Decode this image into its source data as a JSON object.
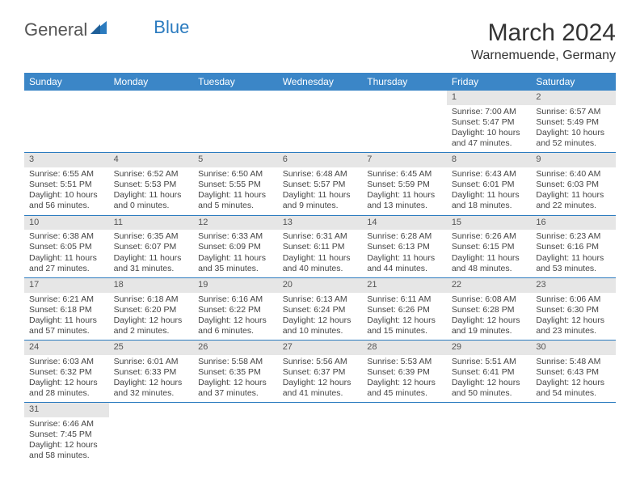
{
  "logo": {
    "word1": "General",
    "word2": "Blue"
  },
  "title": "March 2024",
  "location": "Warnemuende, Germany",
  "colors": {
    "header_bg": "#3b86c7",
    "header_text": "#ffffff",
    "daynum_bg": "#e6e6e6",
    "row_divider": "#2b7bbf",
    "logo_gray": "#555555",
    "logo_blue": "#2b7bbf"
  },
  "day_headers": [
    "Sunday",
    "Monday",
    "Tuesday",
    "Wednesday",
    "Thursday",
    "Friday",
    "Saturday"
  ],
  "weeks": [
    [
      null,
      null,
      null,
      null,
      null,
      {
        "n": "1",
        "sr": "7:00 AM",
        "ss": "5:47 PM",
        "dl": "10 hours and 47 minutes."
      },
      {
        "n": "2",
        "sr": "6:57 AM",
        "ss": "5:49 PM",
        "dl": "10 hours and 52 minutes."
      }
    ],
    [
      {
        "n": "3",
        "sr": "6:55 AM",
        "ss": "5:51 PM",
        "dl": "10 hours and 56 minutes."
      },
      {
        "n": "4",
        "sr": "6:52 AM",
        "ss": "5:53 PM",
        "dl": "11 hours and 0 minutes."
      },
      {
        "n": "5",
        "sr": "6:50 AM",
        "ss": "5:55 PM",
        "dl": "11 hours and 5 minutes."
      },
      {
        "n": "6",
        "sr": "6:48 AM",
        "ss": "5:57 PM",
        "dl": "11 hours and 9 minutes."
      },
      {
        "n": "7",
        "sr": "6:45 AM",
        "ss": "5:59 PM",
        "dl": "11 hours and 13 minutes."
      },
      {
        "n": "8",
        "sr": "6:43 AM",
        "ss": "6:01 PM",
        "dl": "11 hours and 18 minutes."
      },
      {
        "n": "9",
        "sr": "6:40 AM",
        "ss": "6:03 PM",
        "dl": "11 hours and 22 minutes."
      }
    ],
    [
      {
        "n": "10",
        "sr": "6:38 AM",
        "ss": "6:05 PM",
        "dl": "11 hours and 27 minutes."
      },
      {
        "n": "11",
        "sr": "6:35 AM",
        "ss": "6:07 PM",
        "dl": "11 hours and 31 minutes."
      },
      {
        "n": "12",
        "sr": "6:33 AM",
        "ss": "6:09 PM",
        "dl": "11 hours and 35 minutes."
      },
      {
        "n": "13",
        "sr": "6:31 AM",
        "ss": "6:11 PM",
        "dl": "11 hours and 40 minutes."
      },
      {
        "n": "14",
        "sr": "6:28 AM",
        "ss": "6:13 PM",
        "dl": "11 hours and 44 minutes."
      },
      {
        "n": "15",
        "sr": "6:26 AM",
        "ss": "6:15 PM",
        "dl": "11 hours and 48 minutes."
      },
      {
        "n": "16",
        "sr": "6:23 AM",
        "ss": "6:16 PM",
        "dl": "11 hours and 53 minutes."
      }
    ],
    [
      {
        "n": "17",
        "sr": "6:21 AM",
        "ss": "6:18 PM",
        "dl": "11 hours and 57 minutes."
      },
      {
        "n": "18",
        "sr": "6:18 AM",
        "ss": "6:20 PM",
        "dl": "12 hours and 2 minutes."
      },
      {
        "n": "19",
        "sr": "6:16 AM",
        "ss": "6:22 PM",
        "dl": "12 hours and 6 minutes."
      },
      {
        "n": "20",
        "sr": "6:13 AM",
        "ss": "6:24 PM",
        "dl": "12 hours and 10 minutes."
      },
      {
        "n": "21",
        "sr": "6:11 AM",
        "ss": "6:26 PM",
        "dl": "12 hours and 15 minutes."
      },
      {
        "n": "22",
        "sr": "6:08 AM",
        "ss": "6:28 PM",
        "dl": "12 hours and 19 minutes."
      },
      {
        "n": "23",
        "sr": "6:06 AM",
        "ss": "6:30 PM",
        "dl": "12 hours and 23 minutes."
      }
    ],
    [
      {
        "n": "24",
        "sr": "6:03 AM",
        "ss": "6:32 PM",
        "dl": "12 hours and 28 minutes."
      },
      {
        "n": "25",
        "sr": "6:01 AM",
        "ss": "6:33 PM",
        "dl": "12 hours and 32 minutes."
      },
      {
        "n": "26",
        "sr": "5:58 AM",
        "ss": "6:35 PM",
        "dl": "12 hours and 37 minutes."
      },
      {
        "n": "27",
        "sr": "5:56 AM",
        "ss": "6:37 PM",
        "dl": "12 hours and 41 minutes."
      },
      {
        "n": "28",
        "sr": "5:53 AM",
        "ss": "6:39 PM",
        "dl": "12 hours and 45 minutes."
      },
      {
        "n": "29",
        "sr": "5:51 AM",
        "ss": "6:41 PM",
        "dl": "12 hours and 50 minutes."
      },
      {
        "n": "30",
        "sr": "5:48 AM",
        "ss": "6:43 PM",
        "dl": "12 hours and 54 minutes."
      }
    ],
    [
      {
        "n": "31",
        "sr": "6:46 AM",
        "ss": "7:45 PM",
        "dl": "12 hours and 58 minutes."
      },
      null,
      null,
      null,
      null,
      null,
      null
    ]
  ],
  "labels": {
    "sunrise": "Sunrise: ",
    "sunset": "Sunset: ",
    "daylight": "Daylight: "
  }
}
